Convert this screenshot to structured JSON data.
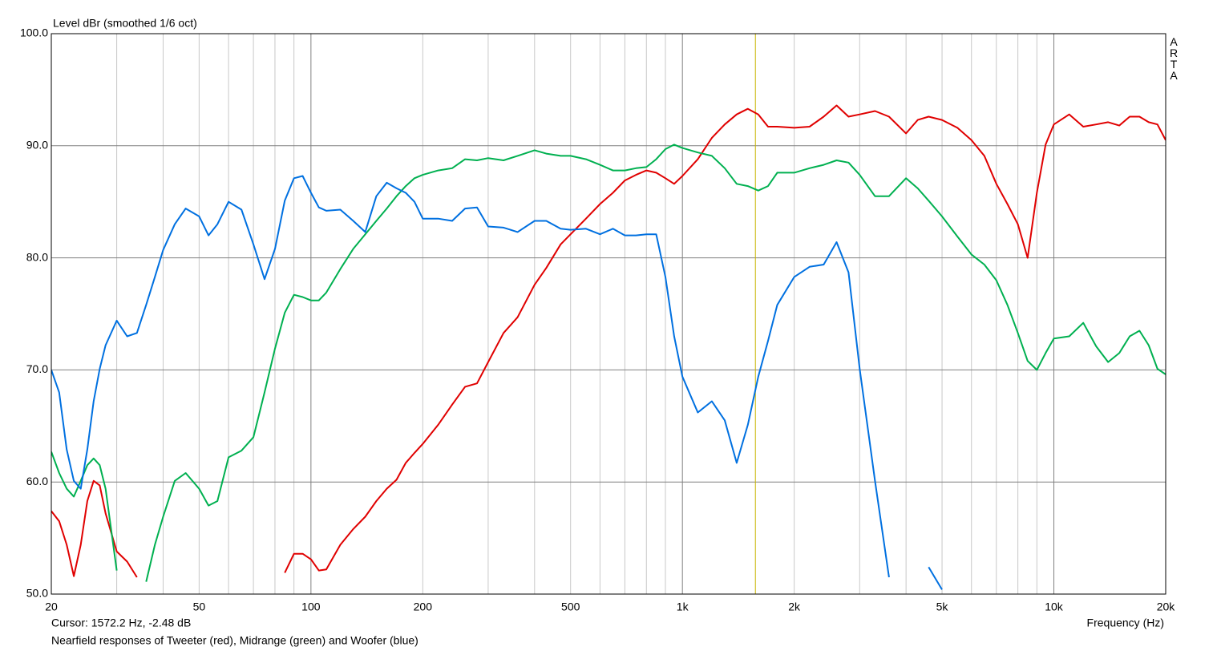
{
  "chart_data": {
    "type": "line",
    "title": "Level dBr (smoothed 1/6 oct)",
    "x_label": "Frequency (Hz)",
    "caption": "Nearfield responses of Tweeter (red), Midrange (green) and Woofer (blue)",
    "logo": "ARTA",
    "xscale": "log",
    "grid": true,
    "cursor": {
      "x": 1572.2,
      "label": "Cursor: 1572.2 Hz, -2.48 dB",
      "color": "#c8b400"
    },
    "xlim": [
      20,
      20000
    ],
    "xticks": [
      20,
      50,
      100,
      200,
      500,
      {
        "value": 1000,
        "label": "1k"
      },
      {
        "value": 2000,
        "label": "2k"
      },
      {
        "value": 5000,
        "label": "5k"
      },
      {
        "value": 10000,
        "label": "10k"
      },
      {
        "value": 20000,
        "label": "20k"
      }
    ],
    "xgrid_minor": [
      30,
      40,
      60,
      70,
      80,
      90,
      300,
      400,
      600,
      700,
      800,
      900,
      3000,
      4000,
      6000,
      7000,
      8000,
      9000
    ],
    "ylim": [
      50,
      100
    ],
    "yticks": [
      {
        "value": 50,
        "label": "50.0"
      },
      {
        "value": 60,
        "label": "60.0"
      },
      {
        "value": 70,
        "label": "70.0"
      },
      {
        "value": 80,
        "label": "80.0"
      },
      {
        "value": 90,
        "label": "90.0"
      },
      {
        "value": 100,
        "label": "100.0"
      }
    ],
    "x": [
      20,
      21,
      22,
      23,
      24,
      25,
      26,
      27,
      28,
      30,
      32,
      34,
      36,
      38,
      40,
      43,
      46,
      50,
      53,
      56,
      60,
      65,
      70,
      75,
      80,
      85,
      90,
      95,
      100,
      105,
      110,
      120,
      130,
      140,
      150,
      160,
      170,
      180,
      190,
      200,
      220,
      240,
      260,
      280,
      300,
      330,
      360,
      400,
      430,
      470,
      500,
      550,
      600,
      650,
      700,
      750,
      800,
      850,
      900,
      950,
      1000,
      1100,
      1200,
      1300,
      1400,
      1500,
      1600,
      1700,
      1800,
      2000,
      2200,
      2400,
      2600,
      2800,
      3000,
      3300,
      3600,
      4000,
      4300,
      4600,
      5000,
      5500,
      6000,
      6500,
      7000,
      7500,
      8000,
      8500,
      9000,
      9500,
      10000,
      11000,
      12000,
      13000,
      14000,
      15000,
      16000,
      17000,
      18000,
      19000,
      20000
    ],
    "series": [
      {
        "name": "Tweeter",
        "color": "#e00000",
        "values": [
          57.4,
          56.5,
          54.4,
          51.6,
          54.4,
          58.3,
          60.1,
          59.7,
          57.2,
          53.8,
          52.9,
          51.5,
          null,
          null,
          null,
          null,
          null,
          null,
          null,
          null,
          null,
          null,
          null,
          null,
          null,
          51.9,
          53.6,
          53.6,
          53.1,
          52.1,
          52.2,
          54.4,
          55.8,
          56.9,
          58.3,
          59.4,
          60.2,
          61.7,
          62.6,
          63.4,
          65.1,
          66.9,
          68.5,
          68.8,
          70.7,
          73.3,
          74.7,
          77.6,
          79.1,
          81.2,
          82.1,
          83.5,
          84.8,
          85.8,
          86.9,
          87.4,
          87.8,
          87.6,
          87.1,
          86.6,
          87.3,
          88.8,
          90.7,
          91.9,
          92.8,
          93.3,
          92.8,
          91.7,
          91.7,
          91.6,
          91.7,
          92.6,
          93.6,
          92.6,
          92.8,
          93.1,
          92.6,
          91.1,
          92.3,
          92.6,
          92.3,
          91.6,
          90.5,
          89.1,
          86.6,
          84.8,
          83.0,
          80.0,
          85.8,
          90.1,
          91.9,
          92.8,
          91.7,
          91.9,
          92.1,
          91.8,
          92.6,
          92.6,
          92.1,
          91.9,
          90.5
        ]
      },
      {
        "name": "Midrange",
        "color": "#00b050",
        "values": [
          62.7,
          60.8,
          59.4,
          58.7,
          60.1,
          61.5,
          62.1,
          61.5,
          59.4,
          52.1,
          null,
          null,
          51.1,
          54.4,
          56.9,
          60.1,
          60.8,
          59.4,
          57.9,
          58.3,
          62.2,
          62.8,
          64.0,
          68.0,
          71.9,
          75.1,
          76.7,
          76.5,
          76.2,
          76.2,
          76.9,
          79.0,
          80.8,
          82.1,
          83.3,
          84.4,
          85.5,
          86.4,
          87.1,
          87.4,
          87.8,
          88.0,
          88.8,
          88.7,
          88.9,
          88.7,
          89.1,
          89.6,
          89.3,
          89.1,
          89.1,
          88.8,
          88.3,
          87.8,
          87.8,
          88.0,
          88.1,
          88.8,
          89.7,
          90.1,
          89.8,
          89.4,
          89.1,
          88.0,
          86.6,
          86.4,
          86.0,
          86.4,
          87.6,
          87.6,
          88.0,
          88.3,
          88.7,
          88.5,
          87.4,
          85.5,
          85.5,
          87.1,
          86.2,
          85.1,
          83.7,
          81.9,
          80.3,
          79.4,
          78.0,
          75.8,
          73.3,
          70.8,
          70.0,
          71.5,
          72.8,
          73.0,
          74.2,
          72.1,
          70.7,
          71.5,
          73.0,
          73.5,
          72.2,
          70.1,
          69.6
        ]
      },
      {
        "name": "Woofer",
        "color": "#0070e0",
        "values": [
          70.0,
          68.0,
          62.9,
          60.1,
          59.4,
          62.9,
          67.2,
          70.1,
          72.2,
          74.4,
          73.0,
          73.3,
          75.8,
          78.3,
          80.7,
          83.0,
          84.4,
          83.7,
          82.0,
          83.0,
          85.0,
          84.3,
          81.2,
          78.1,
          80.8,
          85.1,
          87.1,
          87.3,
          85.8,
          84.5,
          84.2,
          84.3,
          83.3,
          82.3,
          85.5,
          86.7,
          86.2,
          85.8,
          85.0,
          83.5,
          83.5,
          83.3,
          84.4,
          84.5,
          82.8,
          82.7,
          82.3,
          83.3,
          83.3,
          82.6,
          82.5,
          82.6,
          82.1,
          82.6,
          82.0,
          82.0,
          82.1,
          82.1,
          78.3,
          73.0,
          69.4,
          66.2,
          67.2,
          65.5,
          61.7,
          65.1,
          69.4,
          72.6,
          75.8,
          78.3,
          79.2,
          79.4,
          81.4,
          78.7,
          70.1,
          60.1,
          51.5,
          null,
          null,
          52.4,
          50.4,
          null,
          null,
          null,
          null,
          null,
          null,
          null,
          null,
          null,
          null,
          null,
          null,
          null,
          null,
          null,
          null,
          null,
          null,
          null,
          null
        ]
      }
    ]
  }
}
